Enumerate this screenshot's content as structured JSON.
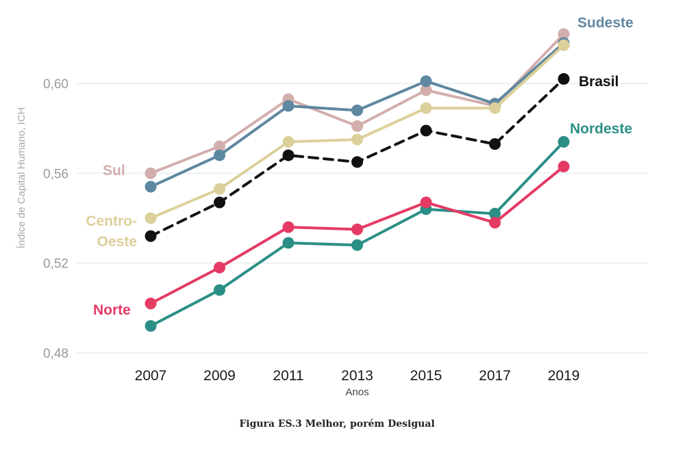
{
  "chart_data": {
    "type": "line",
    "x": [
      2007,
      2009,
      2011,
      2013,
      2015,
      2017,
      2019
    ],
    "x_tick_labels": [
      "2007",
      "2009",
      "2011",
      "2013",
      "2015",
      "2017",
      "2019"
    ],
    "xlabel": "Anos",
    "ylabel": "Índice de Capital Humano, ICH",
    "ylim": [
      0.48,
      0.62
    ],
    "y_ticks": [
      0.48,
      0.52,
      0.56,
      0.6
    ],
    "y_tick_labels": [
      "0,48",
      "0,52",
      "0,56",
      "0,60"
    ],
    "grid": "horizontal",
    "series": [
      {
        "name": "Sul",
        "label": "Sul",
        "color": "#d2aeac",
        "dashed": false,
        "values": [
          0.56,
          0.572,
          0.593,
          0.581,
          0.597,
          0.59,
          0.622
        ]
      },
      {
        "name": "Sudeste",
        "label": "Sudeste",
        "color": "#5e87a0",
        "dashed": false,
        "values": [
          0.554,
          0.568,
          0.59,
          0.588,
          0.601,
          0.591,
          0.618
        ]
      },
      {
        "name": "Centro-Oeste",
        "label_lines": [
          "Centro-",
          "Oeste"
        ],
        "color": "#dcd09a",
        "dashed": false,
        "values": [
          0.54,
          0.553,
          0.574,
          0.575,
          0.589,
          0.589,
          0.617
        ]
      },
      {
        "name": "Brasil",
        "label": "Brasil",
        "color": "#111111",
        "dashed": true,
        "values": [
          0.532,
          0.547,
          0.568,
          0.565,
          0.579,
          0.573,
          0.602
        ]
      },
      {
        "name": "Nordeste",
        "label": "Nordeste",
        "color": "#2b8f85",
        "dashed": false,
        "values": [
          0.492,
          0.508,
          0.529,
          0.528,
          0.544,
          0.542,
          0.574
        ]
      },
      {
        "name": "Norte",
        "label": "Norte",
        "color": "#e43a64",
        "dashed": false,
        "values": [
          0.502,
          0.518,
          0.536,
          0.535,
          0.547,
          0.538,
          0.563
        ]
      }
    ]
  },
  "caption": "Figura ES.3 Melhor, porém Desigual"
}
